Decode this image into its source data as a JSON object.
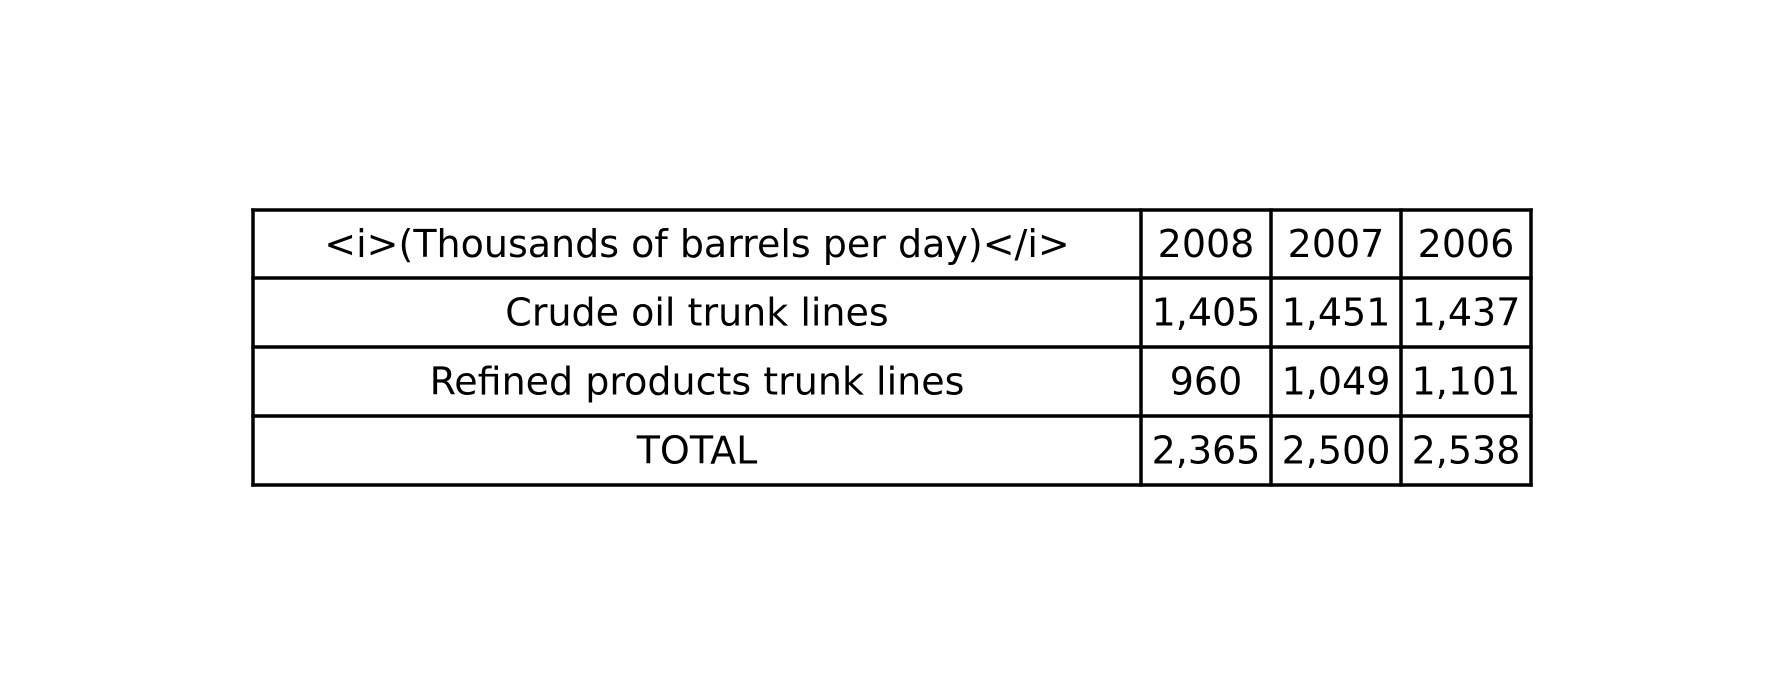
{
  "chart_data": {
    "type": "table",
    "columns": [
      "<i>(Thousands of barrels per day)</i>",
      "2008",
      "2007",
      "2006"
    ],
    "rows": [
      [
        "Crude oil trunk lines",
        "1,405",
        "1,451",
        "1,437"
      ],
      [
        "Refined products trunk lines",
        "960",
        "1,049",
        "1,101"
      ],
      [
        "TOTAL",
        "2,365",
        "2,500",
        "2,538"
      ]
    ]
  }
}
